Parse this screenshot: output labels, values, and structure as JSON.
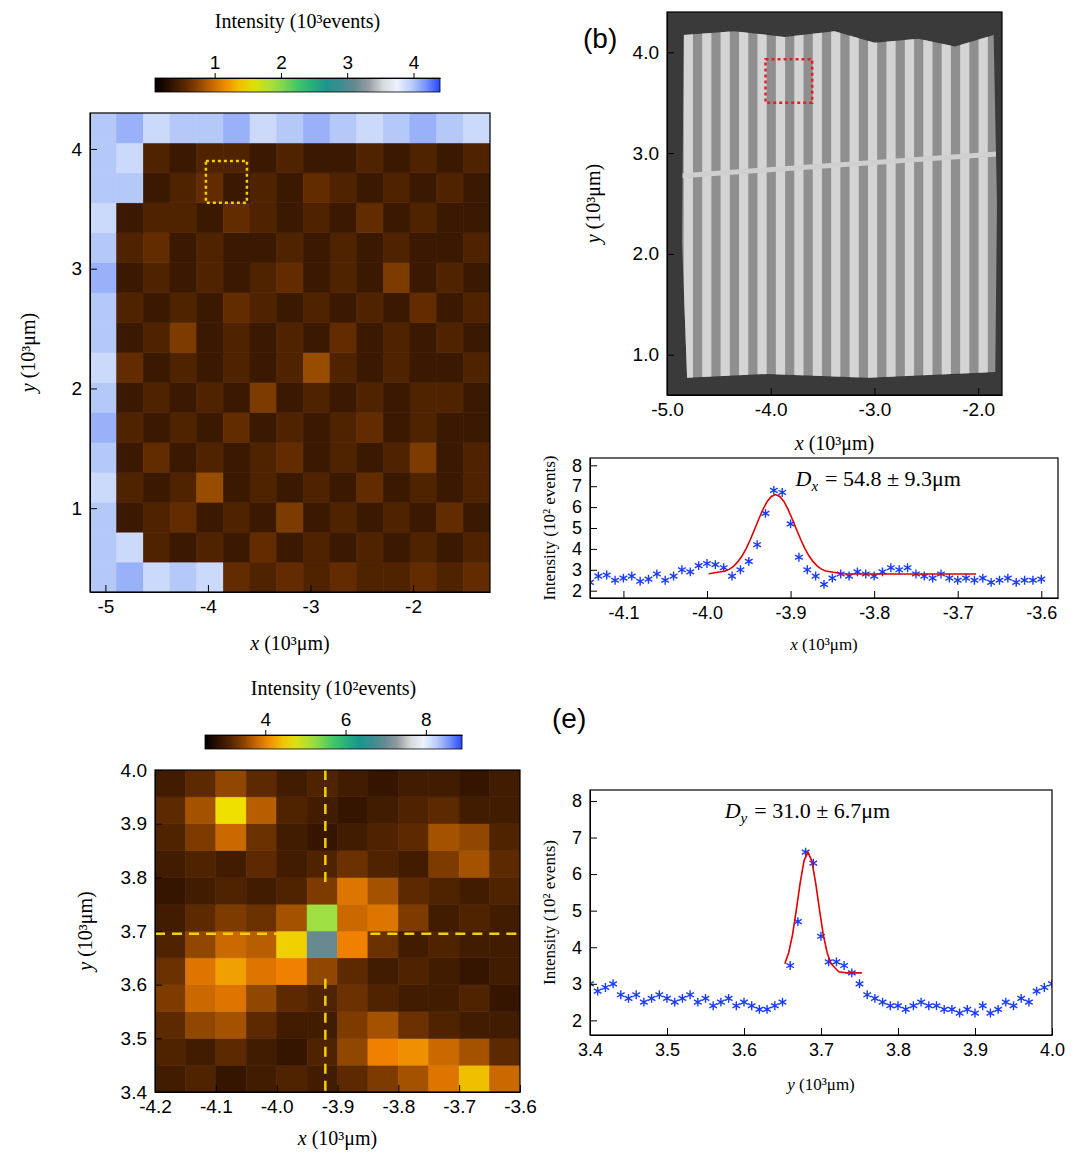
{
  "chart_data": [
    {
      "type": "heatmap",
      "x_label": "x (10³μm)",
      "y_label": "y (10³μm)",
      "xlim": [
        -5.15,
        -1.25
      ],
      "ylim": [
        0.3,
        4.3
      ],
      "xticks": [
        -5,
        -4,
        -3,
        -2
      ],
      "yticks": [
        1,
        2,
        3,
        4
      ],
      "x": [
        -5.02,
        -4.76,
        -4.5,
        -4.24,
        -3.98,
        -3.72,
        -3.46,
        -3.2,
        -2.94,
        -2.68,
        -2.42,
        -2.16,
        -1.9,
        -1.64,
        -1.38
      ],
      "y": [
        0.425,
        0.675,
        0.925,
        1.175,
        1.425,
        1.675,
        1.925,
        2.175,
        2.425,
        2.675,
        2.925,
        3.175,
        3.425,
        3.675,
        3.925,
        4.175
      ],
      "z": [
        [
          4.0,
          4.1,
          3.9,
          4.0,
          3.9,
          0.6,
          0.5,
          0.6,
          0.5,
          0.6,
          0.5,
          0.5,
          0.6,
          0.5,
          0.6
        ],
        [
          4.0,
          3.9,
          0.5,
          0.4,
          0.5,
          0.4,
          0.6,
          0.4,
          0.5,
          0.4,
          0.5,
          0.4,
          0.5,
          0.4,
          0.5
        ],
        [
          4.0,
          0.4,
          0.5,
          0.6,
          0.4,
          0.5,
          0.4,
          0.7,
          0.4,
          0.5,
          0.4,
          0.5,
          0.4,
          0.6,
          0.4
        ],
        [
          3.9,
          0.5,
          0.4,
          0.5,
          0.8,
          0.4,
          0.5,
          0.4,
          0.5,
          0.4,
          0.6,
          0.4,
          0.5,
          0.4,
          0.5
        ],
        [
          4.0,
          0.4,
          0.6,
          0.4,
          0.5,
          0.4,
          0.5,
          0.6,
          0.4,
          0.5,
          0.4,
          0.5,
          0.7,
          0.4,
          0.5
        ],
        [
          4.1,
          0.5,
          0.4,
          0.5,
          0.4,
          0.6,
          0.4,
          0.5,
          0.4,
          0.5,
          0.6,
          0.4,
          0.5,
          0.4,
          0.4
        ],
        [
          4.0,
          0.4,
          0.5,
          0.4,
          0.5,
          0.4,
          0.7,
          0.4,
          0.5,
          0.4,
          0.5,
          0.4,
          0.5,
          0.5,
          0.4
        ],
        [
          3.9,
          0.6,
          0.4,
          0.5,
          0.4,
          0.5,
          0.4,
          0.5,
          0.8,
          0.5,
          0.4,
          0.5,
          0.4,
          0.4,
          0.5
        ],
        [
          4.0,
          0.4,
          0.5,
          0.7,
          0.4,
          0.5,
          0.4,
          0.5,
          0.4,
          0.6,
          0.4,
          0.5,
          0.4,
          0.5,
          0.4
        ],
        [
          4.0,
          0.5,
          0.4,
          0.5,
          0.4,
          0.6,
          0.5,
          0.4,
          0.5,
          0.4,
          0.5,
          0.4,
          0.6,
          0.4,
          0.5
        ],
        [
          4.1,
          0.4,
          0.5,
          0.4,
          0.5,
          0.4,
          0.5,
          0.6,
          0.4,
          0.5,
          0.4,
          0.7,
          0.4,
          0.5,
          0.4
        ],
        [
          4.0,
          0.5,
          0.6,
          0.4,
          0.5,
          0.4,
          0.4,
          0.5,
          0.4,
          0.5,
          0.4,
          0.5,
          0.4,
          0.4,
          0.5
        ],
        [
          3.9,
          0.4,
          0.5,
          0.5,
          0.4,
          0.6,
          0.5,
          0.4,
          0.5,
          0.4,
          0.6,
          0.4,
          0.5,
          0.4,
          0.4
        ],
        [
          4.0,
          4.0,
          0.4,
          0.5,
          0.6,
          0.4,
          0.5,
          0.4,
          0.6,
          0.5,
          0.4,
          0.5,
          0.4,
          0.5,
          0.4
        ],
        [
          4.0,
          3.9,
          0.5,
          0.4,
          0.5,
          0.5,
          0.4,
          0.5,
          0.4,
          0.4,
          0.5,
          0.4,
          0.5,
          0.4,
          0.5
        ],
        [
          4.0,
          4.1,
          3.9,
          4.0,
          4.0,
          4.1,
          3.9,
          4.0,
          4.1,
          4.0,
          3.9,
          4.0,
          4.1,
          4.0,
          3.9
        ]
      ],
      "colorbar": {
        "title": "Intensity (10³events)",
        "range": [
          0.1,
          4.4
        ],
        "ticks": [
          1,
          2,
          3,
          4
        ]
      },
      "zoom_box": {
        "x": [
          -4.02,
          -3.62
        ],
        "y": [
          3.55,
          3.9
        ],
        "color": "#f0d000"
      }
    },
    {
      "type": "image",
      "panel_label": "(b)",
      "x_label": "x (10³μm)",
      "y_label": "y (10³μm)",
      "xlim": [
        -5.0,
        -1.77
      ],
      "ylim": [
        0.6,
        4.4
      ],
      "xticks": [
        {
          "value": -5,
          "label": "-5.0"
        },
        {
          "value": -4,
          "label": "-4.0"
        },
        {
          "value": -3,
          "label": "-3.0"
        },
        {
          "value": -2,
          "label": "-2.0"
        }
      ],
      "yticks": [
        {
          "value": 1,
          "label": "1.0"
        },
        {
          "value": 2,
          "label": "2.0"
        },
        {
          "value": 3,
          "label": "3.0"
        },
        {
          "value": 4,
          "label": "4.0"
        }
      ],
      "zoom_box": {
        "x": [
          -4.05,
          -3.6
        ],
        "y": [
          3.5,
          3.93
        ],
        "color": "#e02020"
      }
    },
    {
      "type": "heatmap",
      "x_label": "x (10³μm)",
      "y_label": "y (10³μm)",
      "xlim": [
        -4.2,
        -3.6
      ],
      "ylim": [
        3.4,
        4.0
      ],
      "xticks": [
        -4.2,
        -4.1,
        {
          "value": -4,
          "label": "-4.0"
        },
        -3.9,
        -3.8,
        -3.7,
        -3.6
      ],
      "yticks": [
        3.4,
        3.5,
        3.6,
        3.7,
        3.8,
        3.9,
        {
          "value": 4,
          "label": "4.0"
        }
      ],
      "x": [
        -4.175,
        -4.125,
        -4.075,
        -4.025,
        -3.975,
        -3.925,
        -3.875,
        -3.825,
        -3.775,
        -3.725,
        -3.675,
        -3.625
      ],
      "y": [
        3.425,
        3.475,
        3.525,
        3.575,
        3.625,
        3.675,
        3.725,
        3.775,
        3.825,
        3.875,
        3.925,
        3.975
      ],
      "z": [
        [
          3.0,
          3.1,
          2.9,
          3.0,
          3.1,
          3.0,
          3.2,
          3.4,
          3.6,
          3.9,
          4.4,
          3.8
        ],
        [
          3.1,
          3.0,
          3.2,
          3.0,
          2.9,
          3.1,
          3.5,
          4.0,
          4.1,
          3.8,
          3.6,
          3.2
        ],
        [
          3.2,
          3.5,
          3.6,
          3.2,
          3.0,
          3.0,
          3.4,
          3.6,
          3.3,
          3.1,
          3.0,
          3.0
        ],
        [
          3.4,
          3.8,
          3.9,
          3.5,
          3.2,
          3.1,
          3.3,
          3.1,
          3.0,
          3.0,
          3.1,
          2.9
        ],
        [
          3.3,
          3.9,
          4.2,
          3.9,
          4.0,
          3.5,
          3.2,
          3.0,
          3.1,
          3.0,
          2.9,
          3.0
        ],
        [
          3.1,
          3.5,
          3.8,
          3.7,
          4.5,
          7.0,
          4.0,
          3.3,
          3.0,
          3.1,
          3.0,
          3.0
        ],
        [
          3.0,
          3.2,
          3.4,
          3.3,
          3.6,
          5.2,
          3.8,
          3.9,
          3.4,
          3.0,
          3.1,
          3.0
        ],
        [
          2.9,
          3.0,
          3.1,
          3.0,
          3.1,
          3.4,
          3.9,
          3.6,
          3.2,
          3.1,
          3.0,
          3.1
        ],
        [
          3.0,
          3.1,
          3.0,
          3.2,
          3.0,
          3.1,
          3.3,
          3.1,
          3.0,
          3.4,
          3.6,
          3.2
        ],
        [
          3.1,
          3.4,
          3.8,
          3.3,
          3.0,
          2.9,
          3.0,
          3.1,
          3.2,
          3.6,
          3.5,
          3.1
        ],
        [
          3.2,
          3.6,
          4.6,
          3.7,
          3.1,
          3.0,
          2.9,
          3.0,
          3.1,
          3.2,
          3.0,
          3.0
        ],
        [
          3.0,
          3.2,
          3.5,
          3.2,
          3.0,
          3.1,
          3.0,
          2.9,
          3.0,
          3.0,
          2.9,
          3.0
        ]
      ],
      "colorbar": {
        "title": "Intensity (10²events)",
        "range": [
          2.5,
          8.9
        ],
        "ticks": [
          4,
          6,
          8
        ]
      },
      "crosshair": {
        "x": -3.92,
        "y": 3.695,
        "color": "#f0d000"
      }
    },
    {
      "type": "scatter",
      "x_label": "x (10³μm)",
      "y_label": "Intensity (10² events)",
      "xlim": [
        -4.14,
        -3.58
      ],
      "ylim": [
        1.65,
        8.35
      ],
      "xticks": [
        -4.1,
        {
          "value": -4,
          "label": "-4.0"
        },
        -3.9,
        -3.8,
        -3.7,
        -3.6
      ],
      "yticks": [
        2,
        3,
        4,
        5,
        6,
        7,
        8
      ],
      "marker": "asterisk",
      "color": "#1a3cff",
      "x": [
        -4.14,
        -4.13,
        -4.12,
        -4.11,
        -4.1,
        -4.09,
        -4.08,
        -4.07,
        -4.06,
        -4.05,
        -4.04,
        -4.03,
        -4.02,
        -4.01,
        -4.0,
        -3.99,
        -3.98,
        -3.97,
        -3.96,
        -3.95,
        -3.94,
        -3.93,
        -3.92,
        -3.91,
        -3.9,
        -3.89,
        -3.88,
        -3.87,
        -3.86,
        -3.85,
        -3.84,
        -3.83,
        -3.82,
        -3.81,
        -3.8,
        -3.79,
        -3.78,
        -3.77,
        -3.76,
        -3.75,
        -3.74,
        -3.73,
        -3.72,
        -3.71,
        -3.7,
        -3.69,
        -3.68,
        -3.67,
        -3.66,
        -3.65,
        -3.64,
        -3.63,
        -3.62,
        -3.61,
        -3.6
      ],
      "values": [
        2.4,
        2.7,
        2.75,
        2.5,
        2.6,
        2.7,
        2.45,
        2.55,
        2.8,
        2.5,
        2.7,
        3.0,
        2.9,
        3.2,
        3.3,
        3.25,
        3.1,
        2.7,
        3.0,
        3.4,
        4.2,
        5.7,
        6.8,
        6.7,
        5.2,
        3.6,
        3.0,
        2.7,
        2.3,
        2.6,
        2.8,
        2.7,
        2.9,
        2.8,
        2.7,
        2.9,
        3.1,
        3.0,
        3.1,
        2.8,
        2.7,
        2.6,
        2.8,
        2.6,
        2.5,
        2.6,
        2.5,
        2.6,
        2.4,
        2.5,
        2.6,
        2.4,
        2.5,
        2.5,
        2.55
      ],
      "fit": {
        "color": "#e00000",
        "x": [
          -3.998,
          -3.978,
          -3.973,
          -3.968,
          -3.963,
          -3.958,
          -3.953,
          -3.948,
          -3.943,
          -3.938,
          -3.933,
          -3.928,
          -3.923,
          -3.918,
          -3.913,
          -3.908,
          -3.903,
          -3.898,
          -3.893,
          -3.888,
          -3.883,
          -3.878,
          -3.873,
          -3.868,
          -3.863,
          -3.858,
          -3.838,
          -3.818,
          -3.798,
          -3.778,
          -3.758,
          -3.738,
          -3.718,
          -3.698,
          -3.678
        ],
        "values": [
          2.81,
          2.94,
          3.03,
          3.18,
          3.39,
          3.67,
          4.03,
          4.46,
          4.94,
          5.43,
          5.89,
          6.27,
          6.51,
          6.6,
          6.51,
          6.27,
          5.89,
          5.43,
          4.94,
          4.46,
          4.03,
          3.67,
          3.39,
          3.18,
          3.03,
          2.94,
          2.81,
          2.8,
          2.8,
          2.8,
          2.8,
          2.8,
          2.8,
          2.8,
          2.8
        ]
      },
      "annotation": {
        "symbol": "D",
        "subscript": "x",
        "text": "= 54.8 ± 9.3μm"
      }
    },
    {
      "type": "scatter",
      "panel_label": "(e)",
      "x_label": "y (10³μm)",
      "y_label": "Intensity (10² events)",
      "xlim": [
        3.4,
        4.0
      ],
      "ylim": [
        1.6,
        8.3
      ],
      "xticks": [
        3.4,
        3.5,
        3.6,
        3.7,
        3.8,
        3.9,
        {
          "value": 4,
          "label": "4.0"
        }
      ],
      "yticks": [
        2,
        3,
        4,
        5,
        6,
        7,
        8
      ],
      "marker": "asterisk",
      "color": "#1a3cff",
      "x": [
        3.4,
        3.41,
        3.42,
        3.43,
        3.44,
        3.45,
        3.46,
        3.47,
        3.48,
        3.49,
        3.5,
        3.51,
        3.52,
        3.53,
        3.54,
        3.55,
        3.56,
        3.57,
        3.58,
        3.59,
        3.6,
        3.61,
        3.62,
        3.63,
        3.64,
        3.65,
        3.66,
        3.67,
        3.68,
        3.69,
        3.7,
        3.71,
        3.72,
        3.73,
        3.74,
        3.75,
        3.76,
        3.77,
        3.78,
        3.79,
        3.8,
        3.81,
        3.82,
        3.83,
        3.84,
        3.85,
        3.86,
        3.87,
        3.88,
        3.89,
        3.9,
        3.91,
        3.92,
        3.93,
        3.94,
        3.95,
        3.96,
        3.97,
        3.98,
        3.99,
        4.0
      ],
      "values": [
        3.0,
        2.8,
        2.9,
        3.0,
        2.7,
        2.6,
        2.7,
        2.5,
        2.6,
        2.7,
        2.6,
        2.5,
        2.6,
        2.7,
        2.5,
        2.6,
        2.4,
        2.5,
        2.6,
        2.4,
        2.5,
        2.4,
        2.3,
        2.3,
        2.4,
        2.5,
        3.5,
        4.7,
        6.6,
        6.3,
        4.3,
        3.6,
        3.6,
        3.5,
        3.3,
        3.0,
        2.7,
        2.6,
        2.5,
        2.4,
        2.4,
        2.3,
        2.4,
        2.5,
        2.4,
        2.4,
        2.3,
        2.3,
        2.2,
        2.3,
        2.2,
        2.4,
        2.2,
        2.3,
        2.5,
        2.4,
        2.6,
        2.5,
        2.8,
        2.9,
        3.0
      ],
      "fit": {
        "color": "#e00000",
        "x": [
          3.653,
          3.658,
          3.663,
          3.668,
          3.673,
          3.678,
          3.683,
          3.688,
          3.693,
          3.698,
          3.703,
          3.708,
          3.713,
          3.723,
          3.733,
          3.743,
          3.753
        ],
        "values": [
          3.55,
          3.85,
          4.34,
          5.03,
          5.77,
          6.37,
          6.6,
          6.37,
          5.77,
          5.03,
          4.34,
          3.85,
          3.55,
          3.33,
          3.3,
          3.3,
          3.3
        ]
      },
      "annotation": {
        "symbol": "D",
        "subscript": "y",
        "text": "= 31.0 ± 6.7μm"
      }
    }
  ]
}
